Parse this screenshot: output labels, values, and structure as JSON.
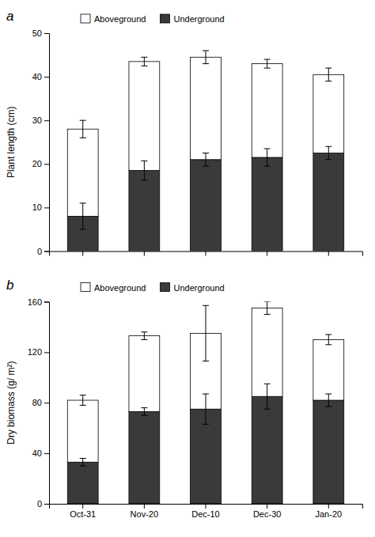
{
  "chart_data": [
    {
      "type": "bar",
      "stacked": true,
      "title": "a",
      "ylabel": "Plant length (cm)",
      "categories": [
        null,
        null,
        null,
        null,
        null
      ],
      "series": [
        {
          "name": "Underground",
          "color": "#3a3a3a",
          "values": [
            8,
            18.5,
            21,
            21.5,
            22.5
          ],
          "errors": [
            3.0,
            2.2,
            1.5,
            2.0,
            1.5
          ]
        },
        {
          "name": "Aboveground",
          "color": "#ffffff",
          "values": [
            20,
            25,
            23.5,
            21.5,
            18
          ],
          "errors": [
            2.0,
            1.0,
            1.5,
            1.0,
            1.5
          ]
        }
      ],
      "ylim": [
        0,
        50
      ],
      "yticks": [
        0,
        10,
        20,
        30,
        40,
        50
      ],
      "grid": false,
      "legend": "top"
    },
    {
      "type": "bar",
      "stacked": true,
      "title": "b",
      "ylabel": "Dry biomass (g/ m²)",
      "categories": [
        "Oct-31",
        "Nov-20",
        "Dec-10",
        "Dec-30",
        "Jan-20"
      ],
      "series": [
        {
          "name": "Underground",
          "color": "#3a3a3a",
          "values": [
            33,
            73,
            75,
            85,
            82
          ],
          "errors": [
            3.0,
            3.0,
            12.0,
            10.0,
            5.0
          ]
        },
        {
          "name": "Aboveground",
          "color": "#ffffff",
          "values": [
            49,
            60,
            60,
            70,
            48
          ],
          "errors": [
            4.0,
            3.0,
            22.0,
            5.0,
            4.0
          ]
        }
      ],
      "ylim": [
        0,
        160
      ],
      "yticks": [
        0,
        40,
        80,
        120,
        160
      ],
      "grid": false,
      "legend": "top"
    }
  ]
}
